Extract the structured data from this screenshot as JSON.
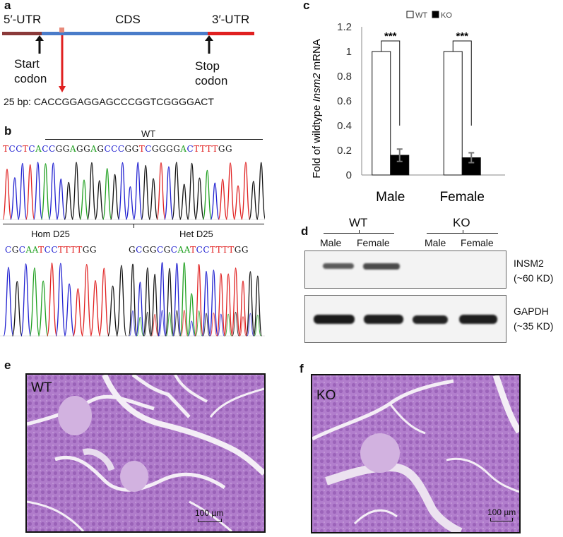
{
  "panels": {
    "a": "a",
    "b": "b",
    "c": "c",
    "d": "d",
    "e": "e",
    "f": "f"
  },
  "gene": {
    "utr5": "5′-UTR",
    "cds": "CDS",
    "utr3": "3′-UTR",
    "start_codon": [
      "Start",
      "codon"
    ],
    "stop_codon": [
      "Stop",
      "codon"
    ],
    "deletion_label": "25 bp: CACCGGAGGAGCCCGGTCGGGGACT",
    "colors": {
      "utr5": "#8b3a3a",
      "cds": "#4a7cc9",
      "utr3": "#e02020",
      "target": "#e88a7a",
      "arrow": "#e02020"
    }
  },
  "chromatogram": {
    "wt_label": "WT",
    "wt_sequence": [
      [
        "T",
        "#e02020"
      ],
      [
        "C",
        "#2020d0"
      ],
      [
        "C",
        "#2020d0"
      ],
      [
        "T",
        "#e02020"
      ],
      [
        "C",
        "#2020d0"
      ],
      [
        "A",
        "#20a020"
      ],
      [
        "C",
        "#2020d0"
      ],
      [
        "C",
        "#2020d0"
      ],
      [
        "G",
        "#111111"
      ],
      [
        "G",
        "#111111"
      ],
      [
        "A",
        "#20a020"
      ],
      [
        "G",
        "#111111"
      ],
      [
        "G",
        "#111111"
      ],
      [
        "A",
        "#20a020"
      ],
      [
        "G",
        "#111111"
      ],
      [
        "C",
        "#2020d0"
      ],
      [
        "C",
        "#2020d0"
      ],
      [
        "C",
        "#2020d0"
      ],
      [
        "G",
        "#111111"
      ],
      [
        "G",
        "#111111"
      ],
      [
        "T",
        "#e02020"
      ],
      [
        "C",
        "#2020d0"
      ],
      [
        "G",
        "#111111"
      ],
      [
        "G",
        "#111111"
      ],
      [
        "G",
        "#111111"
      ],
      [
        "G",
        "#111111"
      ],
      [
        "A",
        "#20a020"
      ],
      [
        "C",
        "#2020d0"
      ],
      [
        "T",
        "#e02020"
      ],
      [
        "T",
        "#e02020"
      ],
      [
        "T",
        "#e02020"
      ],
      [
        "T",
        "#e02020"
      ],
      [
        "G",
        "#111111"
      ],
      [
        "G",
        "#111111"
      ]
    ],
    "hom_label": "Hom D25",
    "hom_sequence": [
      [
        "C",
        "#2020d0"
      ],
      [
        "G",
        "#111111"
      ],
      [
        "C",
        "#2020d0"
      ],
      [
        "A",
        "#20a020"
      ],
      [
        "A",
        "#20a020"
      ],
      [
        "T",
        "#e02020"
      ],
      [
        "C",
        "#2020d0"
      ],
      [
        "C",
        "#2020d0"
      ],
      [
        "T",
        "#e02020"
      ],
      [
        "T",
        "#e02020"
      ],
      [
        "T",
        "#e02020"
      ],
      [
        "T",
        "#e02020"
      ],
      [
        "G",
        "#111111"
      ],
      [
        "G",
        "#111111"
      ]
    ],
    "het_label": "Het D25",
    "het_sequence": [
      [
        "G",
        "#111111"
      ],
      [
        "C",
        "#2020d0"
      ],
      [
        "G",
        "#111111"
      ],
      [
        "G",
        "#111111"
      ],
      [
        "C",
        "#2020d0"
      ],
      [
        "G",
        "#111111"
      ],
      [
        "C",
        "#2020d0"
      ],
      [
        "A",
        "#20a020"
      ],
      [
        "A",
        "#20a020"
      ],
      [
        "T",
        "#e02020"
      ],
      [
        "C",
        "#2020d0"
      ],
      [
        "C",
        "#2020d0"
      ],
      [
        "T",
        "#e02020"
      ],
      [
        "T",
        "#e02020"
      ],
      [
        "T",
        "#e02020"
      ],
      [
        "T",
        "#e02020"
      ],
      [
        "G",
        "#111111"
      ],
      [
        "G",
        "#111111"
      ]
    ]
  },
  "chart_data": {
    "type": "bar",
    "categories": [
      "Male",
      "Female"
    ],
    "series": [
      {
        "name": "WT",
        "values": [
          1.0,
          1.0
        ],
        "errors": [
          0,
          0
        ],
        "color": "#ffffff"
      },
      {
        "name": "KO",
        "values": [
          0.16,
          0.14
        ],
        "errors": [
          0.05,
          0.04
        ],
        "color": "#000000"
      }
    ],
    "ylabel_prefix": "Fold of wildtype ",
    "ylabel_gene": "Insm2",
    "ylabel_suffix": " mRNA",
    "ylim": [
      0,
      1.2
    ],
    "yticks": [
      "0",
      "0.2",
      "0.4",
      "0.6",
      "0.8",
      "1",
      "1.2"
    ],
    "significance": [
      "***",
      "***"
    ],
    "legend": "top",
    "grid": false
  },
  "western": {
    "group_wt": "WT",
    "group_ko": "KO",
    "lanes": [
      "Male",
      "Female",
      "Male",
      "Female"
    ],
    "insm2": [
      "INSM2",
      "(~60 KD)"
    ],
    "gapdh": [
      "GAPDH",
      "(~35 KD)"
    ]
  },
  "histology": {
    "e_label": "WT",
    "f_label": "KO",
    "scale_bar": "100 µm",
    "colors": {
      "tissue": "#b080cc",
      "gap": "#f4eef6"
    }
  }
}
